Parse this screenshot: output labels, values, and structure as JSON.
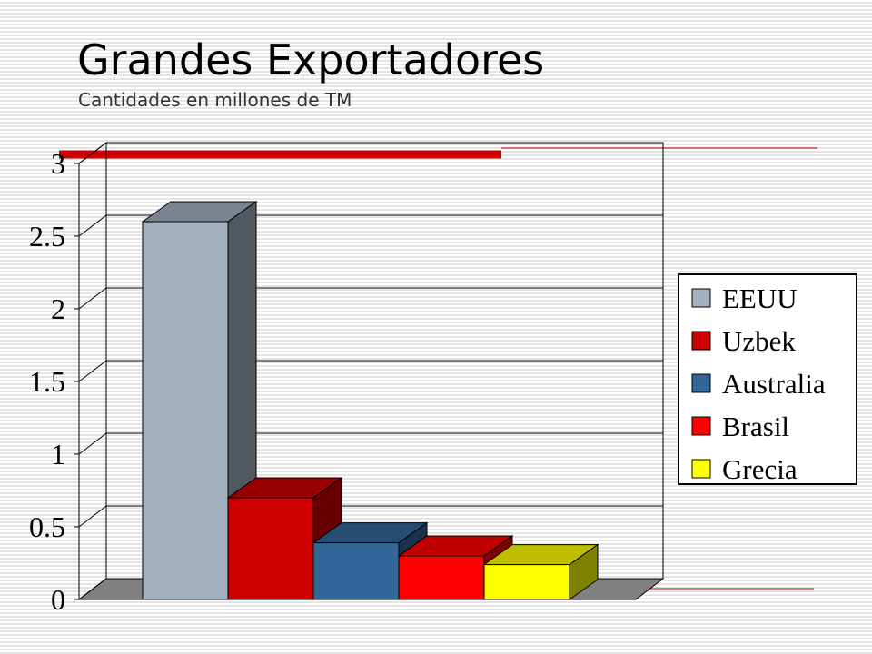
{
  "chart_data": {
    "type": "bar3d",
    "title": "Grandes Exportadores",
    "subtitle": "Cantidades en millones de TM",
    "categories": [
      "EEUU",
      "Uzbek",
      "Australia",
      "Brasil",
      "Grecia"
    ],
    "values": [
      2.6,
      0.7,
      0.39,
      0.3,
      0.24
    ],
    "colors": [
      "#a2b0c0",
      "#cc0000",
      "#336699",
      "#ff0000",
      "#ffff00"
    ],
    "ylim": [
      0,
      3
    ],
    "yticks": [
      0,
      0.5,
      1,
      1.5,
      2,
      2.5,
      3
    ],
    "grid": true,
    "legend": "right"
  }
}
